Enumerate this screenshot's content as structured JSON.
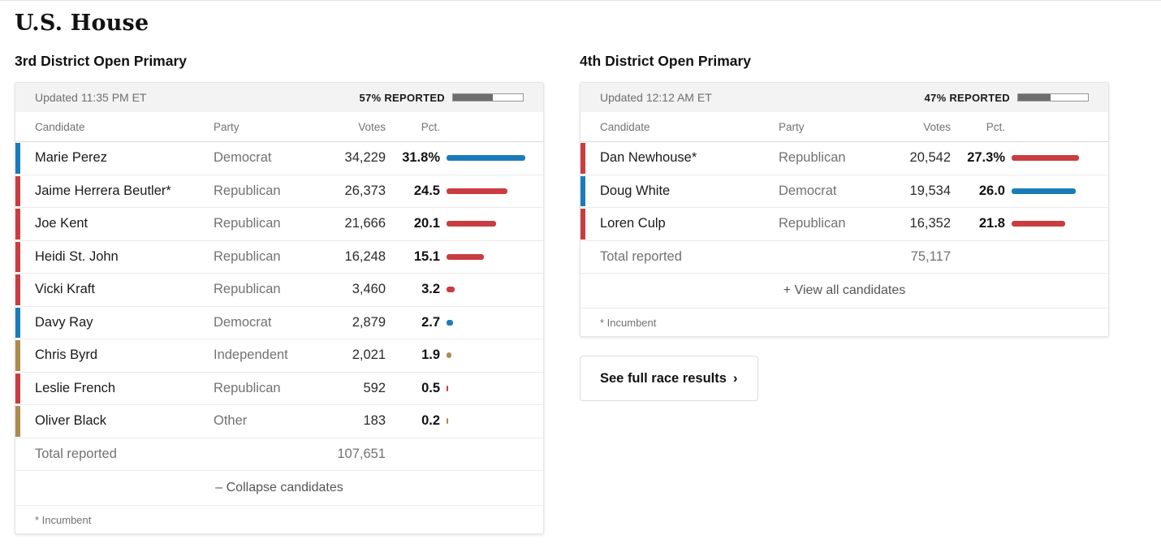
{
  "page": {
    "title": "U.S. House",
    "see_full_results_label": "See full race results",
    "see_full_results_chevron": "›"
  },
  "party_colors": {
    "Democrat": "#1b7cba",
    "Republican": "#c93d40",
    "Independent": "#ad8a4d",
    "Other": "#ad8a4d"
  },
  "columns": {
    "candidate": "Candidate",
    "party": "Party",
    "votes": "Votes",
    "pct": "Pct."
  },
  "races": [
    {
      "heading": "3rd District Open Primary",
      "updated": "Updated 11:35 PM ET",
      "reported_pct": 57,
      "reported_label": "57% REPORTED",
      "candidates": [
        {
          "name": "Marie Perez",
          "party": "Democrat",
          "votes": "34,229",
          "pct": "31.8%",
          "pct_value": 31.8
        },
        {
          "name": "Jaime Herrera Beutler*",
          "party": "Republican",
          "votes": "26,373",
          "pct": "24.5",
          "pct_value": 24.5
        },
        {
          "name": "Joe Kent",
          "party": "Republican",
          "votes": "21,666",
          "pct": "20.1",
          "pct_value": 20.1
        },
        {
          "name": "Heidi St. John",
          "party": "Republican",
          "votes": "16,248",
          "pct": "15.1",
          "pct_value": 15.1
        },
        {
          "name": "Vicki Kraft",
          "party": "Republican",
          "votes": "3,460",
          "pct": "3.2",
          "pct_value": 3.2
        },
        {
          "name": "Davy Ray",
          "party": "Democrat",
          "votes": "2,879",
          "pct": "2.7",
          "pct_value": 2.7
        },
        {
          "name": "Chris Byrd",
          "party": "Independent",
          "votes": "2,021",
          "pct": "1.9",
          "pct_value": 1.9
        },
        {
          "name": "Leslie French",
          "party": "Republican",
          "votes": "592",
          "pct": "0.5",
          "pct_value": 0.5
        },
        {
          "name": "Oliver Black",
          "party": "Other",
          "votes": "183",
          "pct": "0.2",
          "pct_value": 0.2
        }
      ],
      "total_label": "Total reported",
      "total_votes": "107,651",
      "toggle_label": "– Collapse candidates",
      "footnote": "* Incumbent"
    },
    {
      "heading": "4th District Open Primary",
      "updated": "Updated 12:12 AM ET",
      "reported_pct": 47,
      "reported_label": "47% REPORTED",
      "candidates": [
        {
          "name": "Dan Newhouse*",
          "party": "Republican",
          "votes": "20,542",
          "pct": "27.3%",
          "pct_value": 27.3
        },
        {
          "name": "Doug White",
          "party": "Democrat",
          "votes": "19,534",
          "pct": "26.0",
          "pct_value": 26.0
        },
        {
          "name": "Loren Culp",
          "party": "Republican",
          "votes": "16,352",
          "pct": "21.8",
          "pct_value": 21.8
        }
      ],
      "total_label": "Total reported",
      "total_votes": "75,117",
      "toggle_label": "+ View all candidates",
      "footnote": "* Incumbent"
    }
  ]
}
